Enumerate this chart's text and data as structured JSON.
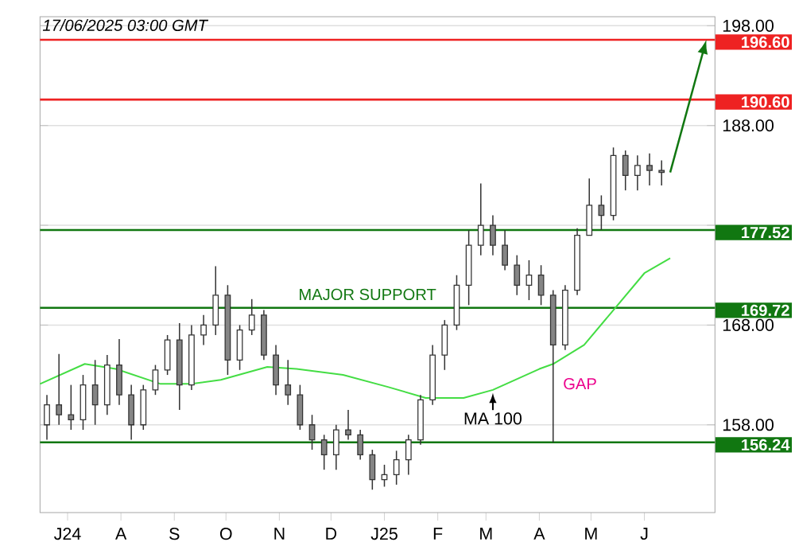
{
  "chart_data": {
    "type": "candlestick",
    "color": "#333333",
    "x": [
      "2024-06-19",
      "2024-06-26",
      "2024-07-03",
      "2024-07-10",
      "2024-07-17",
      "2024-07-24",
      "2024-07-31",
      "2024-08-07",
      "2024-08-14",
      "2024-08-21",
      "2024-08-28",
      "2024-09-04",
      "2024-09-11",
      "2024-09-18",
      "2024-09-25",
      "2024-10-02",
      "2024-10-09",
      "2024-10-16",
      "2024-10-23",
      "2024-10-30",
      "2024-11-06",
      "2024-11-13",
      "2024-11-20",
      "2024-11-27",
      "2024-12-04",
      "2024-12-11",
      "2024-12-18",
      "2024-12-25",
      "2025-01-01",
      "2025-01-08",
      "2025-01-15",
      "2025-01-22",
      "2025-01-29",
      "2025-02-05",
      "2025-02-12",
      "2025-02-19",
      "2025-02-26",
      "2025-03-05",
      "2025-03-12",
      "2025-03-19",
      "2025-03-26",
      "2025-04-02",
      "2025-04-09",
      "2025-04-16",
      "2025-04-23",
      "2025-04-30",
      "2025-05-07",
      "2025-05-14",
      "2025-05-21",
      "2025-05-28",
      "2025-06-04",
      "2025-06-11"
    ],
    "ohlc": [
      [
        158,
        161,
        156.5,
        160
      ],
      [
        160,
        165.1,
        158,
        159
      ],
      [
        159,
        162,
        157.5,
        158.5
      ],
      [
        158.5,
        163,
        157.5,
        162
      ],
      [
        162,
        164.5,
        158,
        160
      ],
      [
        160,
        165,
        159,
        164
      ],
      [
        164,
        166.6,
        160,
        161
      ],
      [
        161,
        162,
        156.5,
        158
      ],
      [
        158,
        162,
        157.5,
        161.5
      ],
      [
        161.5,
        164,
        161,
        163.5
      ],
      [
        163.5,
        167,
        163,
        166.5
      ],
      [
        166.5,
        168.2,
        159.5,
        162
      ],
      [
        162,
        168,
        161.5,
        167
      ],
      [
        167,
        169,
        166,
        168
      ],
      [
        168,
        173.9,
        167,
        171
      ],
      [
        171,
        172,
        163,
        164.5
      ],
      [
        164.5,
        168,
        163.5,
        167.5
      ],
      [
        167.5,
        170.6,
        167,
        169
      ],
      [
        169,
        169.5,
        164.5,
        165
      ],
      [
        165,
        166,
        161,
        162
      ],
      [
        162,
        164.5,
        160,
        161
      ],
      [
        161,
        162,
        157.5,
        158
      ],
      [
        158,
        159,
        155.5,
        156.5
      ],
      [
        156.5,
        157,
        153.5,
        155
      ],
      [
        155,
        158,
        153.5,
        157.5
      ],
      [
        157.5,
        159.5,
        156.5,
        157
      ],
      [
        157,
        157.5,
        154.5,
        155
      ],
      [
        155,
        155.5,
        151.5,
        152.5
      ],
      [
        152.5,
        154,
        151.8,
        153
      ],
      [
        153,
        155.4,
        152,
        154.5
      ],
      [
        154.5,
        157,
        153,
        156.5
      ],
      [
        156.5,
        161,
        156,
        160.5
      ],
      [
        160.5,
        166,
        160,
        165
      ],
      [
        165,
        168.5,
        163.5,
        168
      ],
      [
        168,
        173,
        167.5,
        172
      ],
      [
        172,
        177.5,
        170,
        176
      ],
      [
        176,
        182.2,
        175,
        178
      ],
      [
        178,
        179,
        175,
        176
      ],
      [
        176,
        177.5,
        173.5,
        174
      ],
      [
        174,
        175,
        171,
        172
      ],
      [
        172,
        174.5,
        170.5,
        173
      ],
      [
        173,
        174,
        170,
        171
      ],
      [
        171,
        171.5,
        156.24,
        166
      ],
      [
        166,
        172,
        165.5,
        171.5
      ],
      [
        171.5,
        177.7,
        171,
        177
      ],
      [
        177,
        182.7,
        177,
        180
      ],
      [
        180,
        181,
        177.52,
        179
      ],
      [
        179,
        185.8,
        178.5,
        185
      ],
      [
        185,
        185.5,
        181.5,
        183
      ],
      [
        183,
        185,
        181.5,
        184
      ],
      [
        184,
        185.2,
        182,
        183.5
      ],
      [
        183.5,
        184.5,
        182,
        183.3
      ]
    ],
    "series": [
      {
        "type": "line",
        "name": "MA 100",
        "color": "#44dd44",
        "x": [
          "2024-06-15",
          "2024-07-11",
          "2024-07-29",
          "2024-08-24",
          "2024-09-11",
          "2024-09-28",
          "2024-10-25",
          "2024-11-11",
          "2024-12-08",
          "2025-01-03",
          "2025-01-25",
          "2025-02-16",
          "2025-03-05",
          "2025-04-01",
          "2025-04-09",
          "2025-04-27",
          "2025-05-15",
          "2025-06-01",
          "2025-06-16"
        ],
        "values": [
          162.1,
          164.1,
          163.6,
          162.1,
          162.1,
          162.5,
          163.8,
          163.6,
          163,
          161.8,
          160.7,
          160.7,
          161.5,
          163.6,
          164.1,
          166,
          169.7,
          173.2,
          174.7
        ]
      }
    ],
    "xlim": [
      "2024-06-15",
      "2025-07-12"
    ],
    "xticks": [
      {
        "value": "2024-07-01",
        "label": "J24"
      },
      {
        "value": "2024-08-01",
        "label": "A"
      },
      {
        "value": "2024-09-01",
        "label": "S"
      },
      {
        "value": "2024-10-01",
        "label": "O"
      },
      {
        "value": "2024-11-01",
        "label": "N"
      },
      {
        "value": "2024-12-01",
        "label": "D"
      },
      {
        "value": "2025-01-01",
        "label": "J25"
      },
      {
        "value": "2025-02-01",
        "label": "F"
      },
      {
        "value": "2025-03-01",
        "label": "M"
      },
      {
        "value": "2025-04-01",
        "label": "A"
      },
      {
        "value": "2025-05-01",
        "label": "M"
      },
      {
        "value": "2025-06-01",
        "label": "J"
      }
    ],
    "ylim": [
      149.2,
      198.9
    ],
    "yticks": [
      {
        "value": 158,
        "label": "158.00"
      },
      {
        "value": 168,
        "label": "168.00"
      },
      {
        "value": 178,
        "label": null
      },
      {
        "value": 188,
        "label": "188.00"
      },
      {
        "value": 198,
        "label": "198.00"
      }
    ],
    "grid": "y",
    "ref_lines": [
      {
        "axis": "y",
        "value": 196.6,
        "label": "196.60",
        "color": "#ee2222"
      },
      {
        "axis": "y",
        "value": 190.6,
        "label": "190.60",
        "color": "#ee2222"
      },
      {
        "axis": "y",
        "value": 177.52,
        "label": "177.52",
        "color": "#117711"
      },
      {
        "axis": "y",
        "value": 169.72,
        "label": "169.72",
        "color": "#117711"
      },
      {
        "axis": "y",
        "value": 156.24,
        "label": "156.24",
        "color": "#117711"
      }
    ],
    "annotations": [
      "17/06/2025 03:00 GMT",
      "MAJOR SUPPORT",
      "GAP"
    ]
  }
}
